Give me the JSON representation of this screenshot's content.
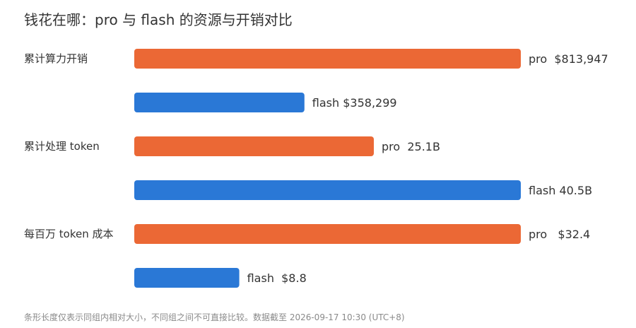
{
  "title": "钱花在哪：pro 与 flash 的资源与开销对比",
  "footnote": "条形长度仅表示同组内相对大小，不同组之间不可直接比较。数据截至 2026-09-17 10:30 (UTC+8)",
  "colors": {
    "pro": "#eb6835",
    "flash": "#2a78d6",
    "text": "#333333",
    "footnote": "#8a8a8a"
  },
  "chart_data": {
    "type": "bar",
    "orientation": "horizontal",
    "scale": "per-group relative",
    "groups": [
      {
        "label": "累计算力开销",
        "bars": [
          {
            "series": "pro",
            "value": 813947,
            "label": "pro  $813,947"
          },
          {
            "series": "flash",
            "value": 358299,
            "label": "flash $358,299"
          }
        ]
      },
      {
        "label": "累计处理 token",
        "bars": [
          {
            "series": "pro",
            "value": 25.1,
            "label": "pro  25.1B"
          },
          {
            "series": "flash",
            "value": 40.5,
            "label": "flash 40.5B"
          }
        ]
      },
      {
        "label": "每百万 token 成本",
        "bars": [
          {
            "series": "pro",
            "value": 32.4,
            "label": "pro   $32.4"
          },
          {
            "series": "flash",
            "value": 8.8,
            "label": "flash  $8.8"
          }
        ]
      }
    ]
  }
}
